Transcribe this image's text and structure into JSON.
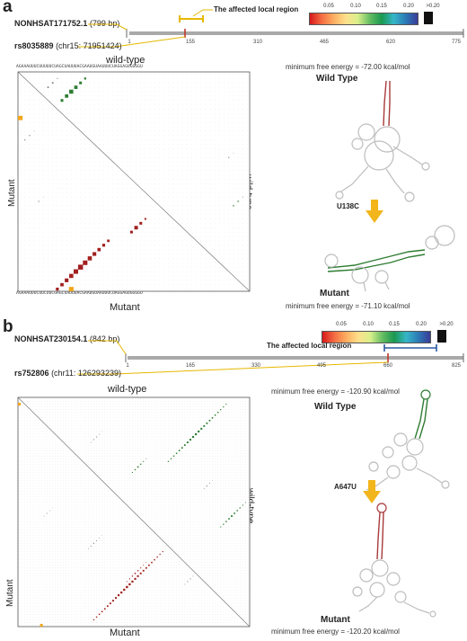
{
  "legend": {
    "ticks": [
      "0.05",
      "0.10",
      "0.15",
      "0.20"
    ],
    "over": ">0.20"
  },
  "panels": [
    {
      "letter": "a",
      "transcript_id": "NONHSAT171752.1",
      "transcript_len": "(799 bp)",
      "snp_id": "rs8035889",
      "snp_loc": "(chr15: 71951424)",
      "region_label": "The affected local region",
      "ticks": [
        "1",
        "155",
        "310",
        "465",
        "620",
        "775"
      ],
      "wt_label": "wild-type",
      "mut_label": "Mutant",
      "wt_side": "wild-type",
      "mut_side": "Mutant",
      "mut_bottom": "Mutant",
      "seq_wt": "AGAAAUUUCUUUUUCUAGCUAUUUACGAAUGUAAUUUCUAGGAGUGGGGU",
      "seq_mut": "AGAAAUUUCUUCUUCUAGCUAUUUACGAAUGUAAUUUCUAGGAGUGGGGU",
      "mfe_wt": "minimum free energy = -72.00 kcal/mol",
      "wt_title": "Wild Type",
      "mutation": "U138C",
      "mut_title": "Mutant",
      "mfe_mut": "minimum free energy = -71.10 kcal/mol"
    },
    {
      "letter": "b",
      "transcript_id": "NONHSAT230154.1",
      "transcript_len": "(842 bp)",
      "snp_id": "rs752806",
      "snp_loc": "(chr11: 126293239)",
      "region_label": "The affected local region",
      "ticks": [
        "1",
        "165",
        "330",
        "495",
        "660",
        "825"
      ],
      "wt_label": "wild-type",
      "mut_label": "Mutant",
      "wt_side": "wild-type",
      "mut_side": "Mutant",
      "mut_bottom": "Mutant",
      "mfe_wt": "minimum free energy = -120.90 kcal/mol",
      "wt_title": "Wild Type",
      "mutation": "A647U",
      "mut_title": "Mutant",
      "mfe_mut": "minimum free energy = -120.20 kcal/mol"
    }
  ]
}
